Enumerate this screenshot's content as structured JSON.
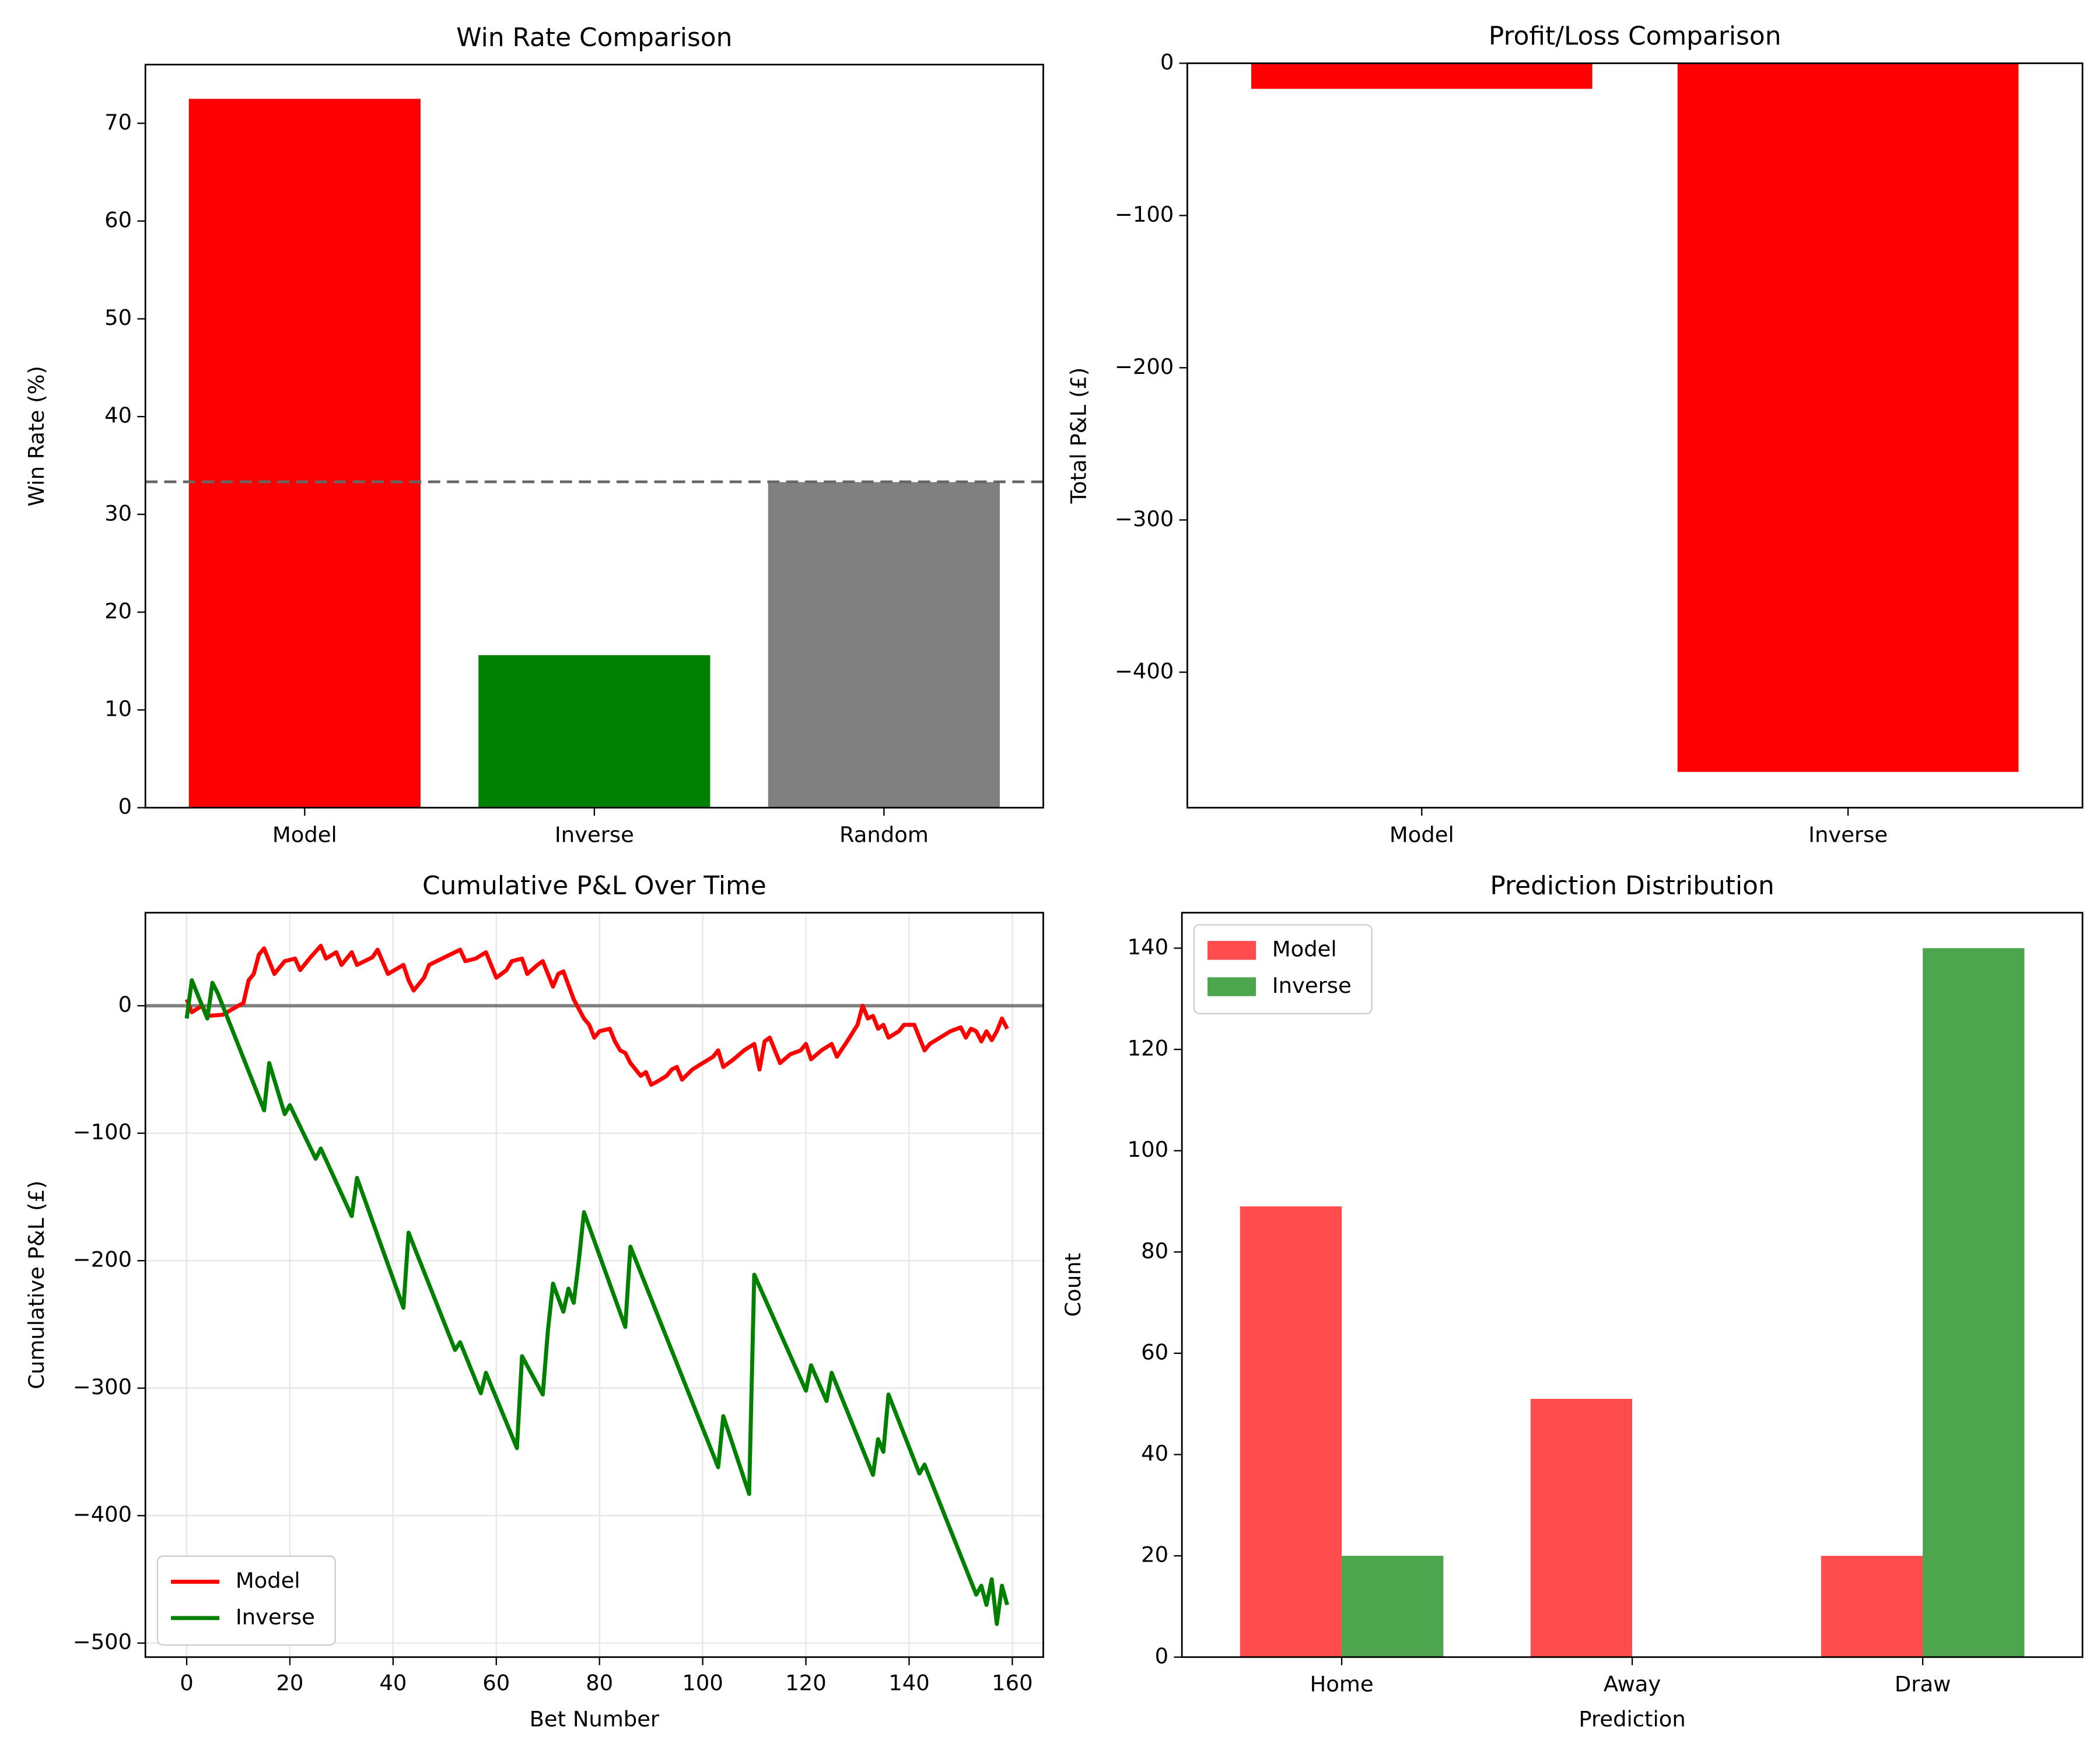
{
  "chart_data": [
    {
      "type": "bar",
      "title": "Win Rate Comparison",
      "ylabel": "Win Rate (%)",
      "categories": [
        "Model",
        "Inverse",
        "Random"
      ],
      "values": [
        72.5,
        15.6,
        33.3
      ],
      "colors": [
        "#ff0000",
        "#008000",
        "#808080"
      ],
      "ylim": [
        0,
        76
      ],
      "yticks": [
        0,
        10,
        20,
        30,
        40,
        50,
        60,
        70
      ],
      "hline": {
        "value": 33.33,
        "color": "#666666",
        "style": "dashed"
      }
    },
    {
      "type": "bar",
      "title": "Profit/Loss Comparison",
      "ylabel": "Total P&L (£)",
      "categories": [
        "Model",
        "Inverse"
      ],
      "values": [
        -16.8,
        -465.5
      ],
      "color": "#ff0000",
      "ylim": [
        -489,
        0
      ],
      "yticks": [
        {
          "value": -400,
          "label": "−400"
        },
        {
          "value": -300,
          "label": "−300"
        },
        {
          "value": -200,
          "label": "−200"
        },
        {
          "value": -100,
          "label": "−100"
        },
        0
      ]
    },
    {
      "type": "line",
      "title": "Cumulative P&L Over Time",
      "xlabel": "Bet Number",
      "ylabel": "Cumulative P&L (£)",
      "grid": true,
      "legend": "lower left",
      "xlim": [
        -8,
        166
      ],
      "xticks": [
        0,
        20,
        40,
        60,
        80,
        100,
        120,
        140,
        160
      ],
      "ylim": [
        -511,
        73
      ],
      "yticks": [
        {
          "value": -500,
          "label": "−500"
        },
        {
          "value": -400,
          "label": "−400"
        },
        {
          "value": -300,
          "label": "−300"
        },
        {
          "value": -200,
          "label": "−200"
        },
        {
          "value": -100,
          "label": "−100"
        },
        0
      ],
      "hline": {
        "value": 0,
        "color": "#808080",
        "style": "solid"
      },
      "series": [
        {
          "name": "Model",
          "color": "#ff0000",
          "x": [
            0,
            1,
            3,
            4,
            7,
            10,
            11,
            12,
            13,
            14,
            15,
            17,
            19,
            21,
            22,
            24,
            26,
            27,
            29,
            30,
            32,
            33,
            36,
            37,
            39,
            42,
            43,
            44,
            46,
            47,
            50,
            53,
            54,
            56,
            58,
            60,
            62,
            63,
            65,
            66,
            68,
            69,
            71,
            72,
            73,
            75,
            77,
            78,
            79,
            80,
            82,
            83,
            84,
            85,
            86,
            87,
            88,
            89,
            90,
            91,
            93,
            94,
            95,
            96,
            98,
            100,
            102,
            103,
            104,
            106,
            108,
            110,
            111,
            112,
            113,
            115,
            117,
            119,
            120,
            121,
            123,
            125,
            126,
            128,
            130,
            131,
            132,
            133,
            134,
            135,
            136,
            138,
            139,
            141,
            142,
            143,
            144,
            146,
            148,
            150,
            151,
            152,
            153,
            154,
            155,
            156,
            157,
            158,
            159
          ],
          "values": [
            5,
            -5,
            0,
            -8,
            -7,
            0,
            2,
            20,
            25,
            40,
            45,
            25,
            35,
            37,
            28,
            38,
            47,
            37,
            42,
            32,
            42,
            32,
            38,
            44,
            25,
            32,
            20,
            12,
            22,
            32,
            38,
            44,
            35,
            37,
            42,
            22,
            28,
            35,
            37,
            25,
            32,
            35,
            15,
            25,
            27,
            5,
            -10,
            -15,
            -25,
            -20,
            -18,
            -28,
            -35,
            -37,
            -45,
            -50,
            -55,
            -52,
            -62,
            -60,
            -55,
            -50,
            -48,
            -58,
            -50,
            -45,
            -40,
            -35,
            -48,
            -42,
            -35,
            -30,
            -50,
            -28,
            -25,
            -45,
            -38,
            -35,
            -30,
            -42,
            -35,
            -30,
            -40,
            -28,
            -15,
            0,
            -10,
            -8,
            -18,
            -15,
            -25,
            -20,
            -15,
            -15,
            -25,
            -35,
            -30,
            -25,
            -20,
            -17,
            -25,
            -18,
            -20,
            -28,
            -20,
            -27,
            -20,
            -10,
            -18
          ]
        },
        {
          "name": "Inverse",
          "color": "#008000",
          "x": [
            0,
            1,
            4,
            5,
            6,
            15,
            16,
            19,
            20,
            25,
            26,
            32,
            33,
            42,
            43,
            52,
            53,
            57,
            58,
            64,
            65,
            69,
            70,
            71,
            73,
            74,
            75,
            76,
            77,
            85,
            86,
            103,
            104,
            109,
            110,
            120,
            121,
            124,
            125,
            133,
            134,
            135,
            136,
            142,
            143,
            153,
            154,
            155,
            156,
            157,
            158,
            159
          ],
          "values": [
            -10,
            20,
            -10,
            18,
            10,
            -82,
            -45,
            -85,
            -78,
            -120,
            -112,
            -165,
            -135,
            -237,
            -178,
            -270,
            -264,
            -304,
            -288,
            -347,
            -275,
            -305,
            -255,
            -218,
            -240,
            -222,
            -233,
            -200,
            -162,
            -252,
            -189,
            -362,
            -322,
            -383,
            -211,
            -302,
            -282,
            -310,
            -288,
            -368,
            -340,
            -350,
            -305,
            -367,
            -360,
            -462,
            -455,
            -470,
            -450,
            -485,
            -455,
            -470
          ]
        }
      ]
    },
    {
      "type": "bar",
      "title": "Prediction Distribution",
      "xlabel": "Prediction",
      "ylabel": "Count",
      "legend": "upper left",
      "categories": [
        "Home",
        "Away",
        "Draw"
      ],
      "ylim": [
        0,
        147
      ],
      "yticks": [
        0,
        20,
        40,
        60,
        80,
        100,
        120,
        140
      ],
      "series": [
        {
          "name": "Model",
          "color": "#ff4d4d",
          "values": [
            89,
            51,
            20
          ]
        },
        {
          "name": "Inverse",
          "color": "#4da64d",
          "values": [
            20,
            0,
            140
          ]
        }
      ]
    }
  ]
}
